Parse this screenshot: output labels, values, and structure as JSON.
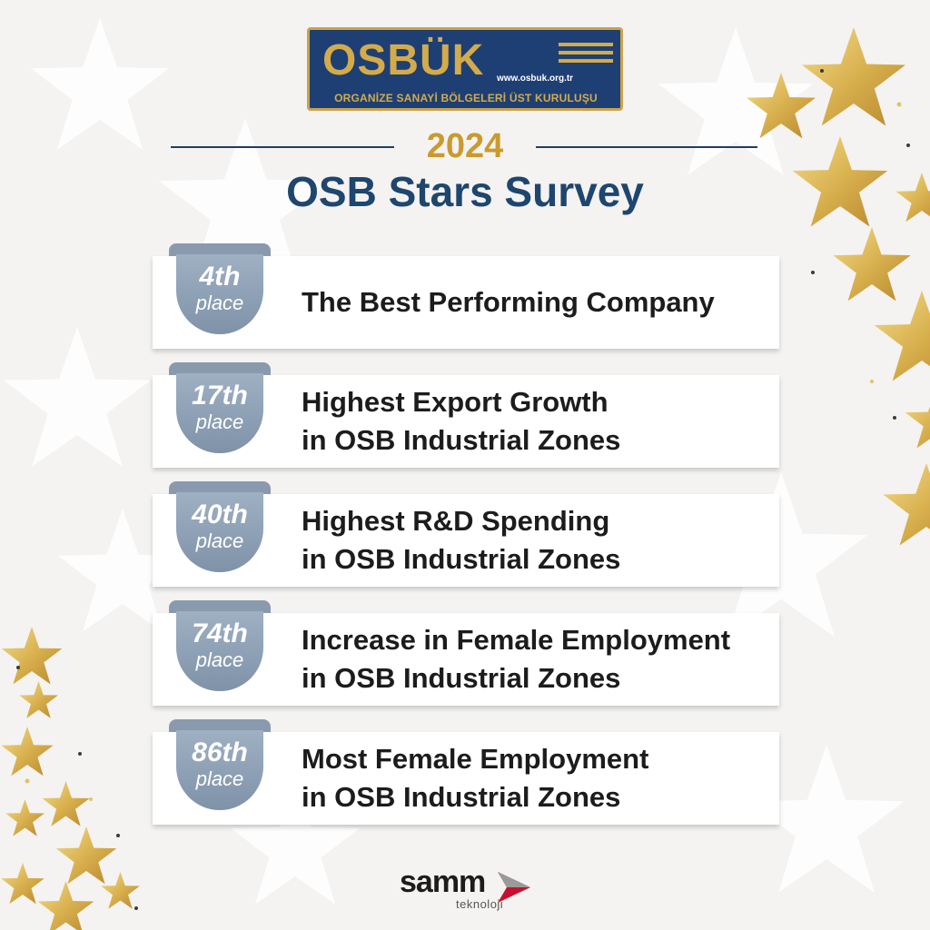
{
  "logo": {
    "word": "OSBÜK",
    "url": "www.osbuk.org.tr",
    "subtitle": "ORGANİZE SANAYİ BÖLGELERİ ÜST KURULUŞU"
  },
  "heading": {
    "year": "2024",
    "title": "OSB Stars Survey"
  },
  "awards": [
    {
      "rank": "4th",
      "place": "place",
      "line1": "The Best Performing Company",
      "line2": ""
    },
    {
      "rank": "17th",
      "place": "place",
      "line1": "Highest Export Growth",
      "line2": "in OSB Industrial Zones"
    },
    {
      "rank": "40th",
      "place": "place",
      "line1": "Highest R&D Spending",
      "line2": "in OSB Industrial Zones"
    },
    {
      "rank": "74th",
      "place": "place",
      "line1": "Increase in Female Employment",
      "line2": "in OSB Industrial Zones"
    },
    {
      "rank": "86th",
      "place": "place",
      "line1": "Most Female Employment",
      "line2": "in OSB Industrial Zones"
    }
  ],
  "footer": {
    "brand": "samm",
    "sub": "teknoloji"
  },
  "colors": {
    "navy": "#1e3f73",
    "gold": "#d4ab4b",
    "ribbon": "#8a9aae"
  }
}
